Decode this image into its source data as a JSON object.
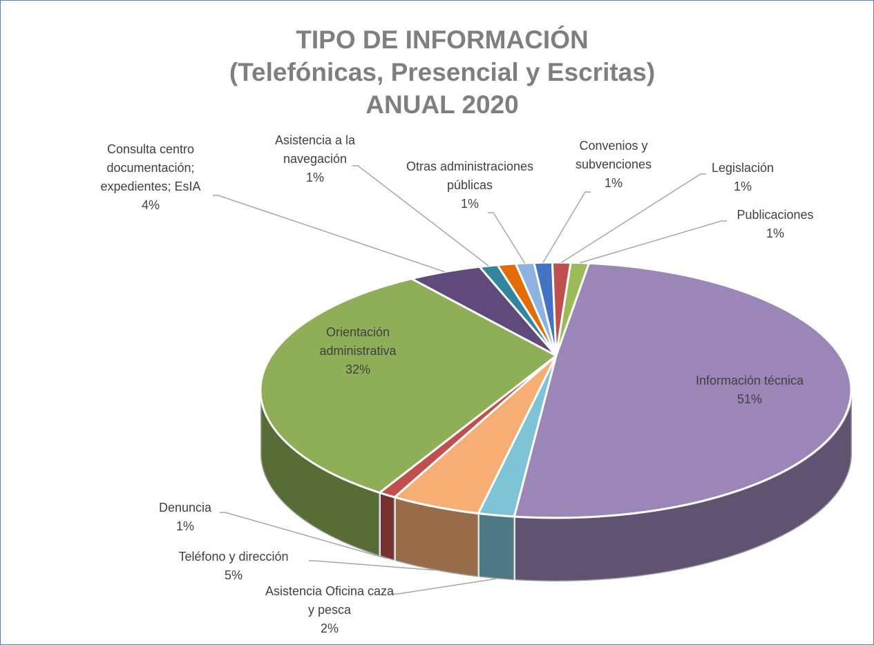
{
  "chart_data": {
    "type": "pie3d",
    "title": "TIPO DE INFORMACIÓN\n(Telefónicas, Presencial y Escritas)\nANUAL 2020",
    "categories": [
      "Convenios y subvenciones",
      "Legislación",
      "Publicaciones",
      "Información técnica",
      "Asistencia Oficina caza y pesca",
      "Teléfono y dirección",
      "Denuncia",
      "Orientación administrativa",
      "Consulta centro documentación; expedientes; EsIA",
      "Asistencia a la navegación",
      null,
      "Otras administraciones públicas"
    ],
    "values": [
      1,
      1,
      1,
      51,
      2,
      5,
      1,
      32,
      4,
      1,
      1,
      1
    ],
    "value_labels": [
      "1%",
      "1%",
      "1%",
      "51%",
      "2%",
      "5%",
      "1%",
      "32%",
      "4%",
      "1%",
      null,
      "1%"
    ],
    "colors": [
      "#4472c4",
      "#c0504d",
      "#9bbb59",
      "#9c86b8",
      "#7fc3d6",
      "#f6ae74",
      "#c0504d",
      "#8fae58",
      "#604a7b",
      "#31859c",
      "#e36c09",
      "#8db3e2"
    ]
  }
}
